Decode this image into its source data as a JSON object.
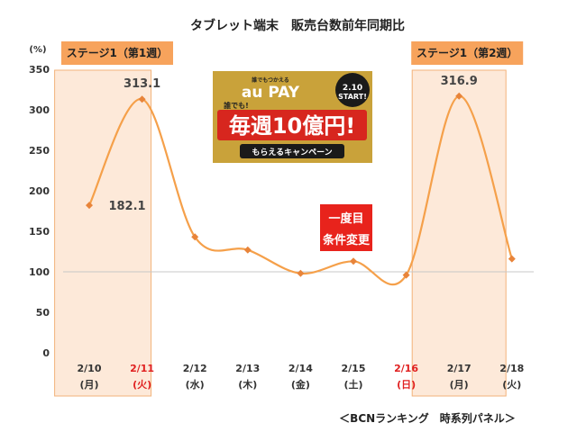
{
  "chart_data": {
    "type": "line",
    "title": "タブレット端末　販売台数前年同期比",
    "unit_label": "(%)",
    "ylim": [
      0,
      350
    ],
    "yticks": [
      0,
      50,
      100,
      150,
      200,
      250,
      300,
      350
    ],
    "baseline": 100,
    "grid": false,
    "categories": [
      {
        "date": "2/10",
        "day": "(月)",
        "red": false
      },
      {
        "date": "2/11",
        "day": "(火)",
        "red": true
      },
      {
        "date": "2/12",
        "day": "(水)",
        "red": false
      },
      {
        "date": "2/13",
        "day": "(木)",
        "red": false
      },
      {
        "date": "2/14",
        "day": "(金)",
        "red": false
      },
      {
        "date": "2/15",
        "day": "(土)",
        "red": false
      },
      {
        "date": "2/16",
        "day": "(日)",
        "red": true
      },
      {
        "date": "2/17",
        "day": "(月)",
        "red": false
      },
      {
        "date": "2/18",
        "day": "(火)",
        "red": false
      }
    ],
    "values": [
      182.1,
      313.1,
      143,
      127,
      98,
      113,
      96,
      316.9,
      116
    ],
    "data_labels": [
      {
        "index": 0,
        "text": "182.1"
      },
      {
        "index": 1,
        "text": "313.1"
      },
      {
        "index": 7,
        "text": "316.9"
      }
    ],
    "stages": [
      {
        "label": "ステージ1（第1週）",
        "index": 1
      },
      {
        "label": "ステージ1（第2週）",
        "index": 7
      }
    ],
    "badge": {
      "line1": "一度目",
      "line2": "条件変更"
    },
    "footer": "＜BCNランキング　時系列パネル＞"
  },
  "ad": {
    "tagline": "誰でもつかえる",
    "brand": "au PAY",
    "date": "2.10",
    "start": "START!",
    "prefix": "誰でも!",
    "headline": "毎週10億円!",
    "sub": "もらえるキャンペーン"
  },
  "colors": {
    "line": "#f5a04a",
    "marker": "#e8843a",
    "shade": "#fde9d9",
    "shade_border": "#f2b27a",
    "stage_bg": "#f7a35c",
    "badge_bg": "#e8231c",
    "red_text": "#e02020",
    "ad_bg": "#c9a23a",
    "ad_red": "#d7261e"
  }
}
